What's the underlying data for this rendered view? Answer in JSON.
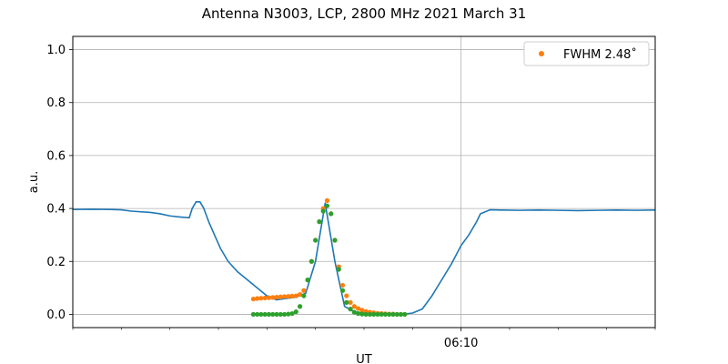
{
  "chart_data": {
    "type": "line",
    "title": "Antenna N3003, LCP, 2800 MHz 2021 March 31",
    "xlabel": "UT",
    "ylabel": "a.u.",
    "ylim": [
      -0.05,
      1.05
    ],
    "yticks": [
      0.0,
      0.2,
      0.4,
      0.6,
      0.8,
      1.0
    ],
    "ytick_labels": [
      "0.0",
      "0.2",
      "0.4",
      "0.6",
      "0.8",
      "1.0"
    ],
    "xlim_minutes": [
      0,
      30
    ],
    "x_unit": "minutes",
    "xticks_major": [
      {
        "x": 20,
        "label": "06:10"
      }
    ],
    "xticks_minor": [
      0,
      2.5,
      5,
      7.5,
      10,
      12.5,
      15,
      17.5,
      22.5,
      25,
      27.5,
      30
    ],
    "vline_x": 20,
    "grid": "horizontal at y ticks; vertical at 06:10",
    "legend": {
      "placement": "top-right",
      "label": "FWHM 2.48$^\\circ$",
      "label_display": "FWHM 2.48˚",
      "color": "#ff7f0e"
    },
    "series": [
      {
        "kind": "line",
        "color": "#1f77b4",
        "x": [
          0,
          1,
          2,
          2.5,
          3,
          4,
          4.5,
          5,
          5.5,
          5.8,
          6.0,
          6.15,
          6.35,
          6.55,
          6.75,
          7.0,
          7.3,
          7.6,
          8.0,
          8.5,
          9.0,
          9.5,
          10.0,
          10.5,
          11.0,
          11.5,
          12.0,
          12.5,
          13.0,
          13.5,
          14.0,
          14.5,
          15.0,
          15.5,
          16.0,
          16.5,
          17.0,
          17.5,
          18.0,
          18.5,
          19.0,
          19.5,
          20.0,
          20.4,
          20.8,
          21.0,
          21.5,
          22,
          23,
          24,
          25,
          26,
          27,
          28,
          29,
          30
        ],
        "y": [
          0.396,
          0.397,
          0.396,
          0.395,
          0.39,
          0.385,
          0.38,
          0.372,
          0.368,
          0.366,
          0.365,
          0.4,
          0.425,
          0.425,
          0.4,
          0.35,
          0.3,
          0.25,
          0.2,
          0.16,
          0.13,
          0.1,
          0.07,
          0.055,
          0.06,
          0.065,
          0.08,
          0.2,
          0.42,
          0.2,
          0.03,
          0.01,
          0.005,
          0.003,
          0.002,
          0.001,
          0.0,
          0.005,
          0.02,
          0.07,
          0.13,
          0.19,
          0.26,
          0.3,
          0.35,
          0.38,
          0.395,
          0.394,
          0.393,
          0.394,
          0.393,
          0.392,
          0.393,
          0.394,
          0.393,
          0.394
        ]
      },
      {
        "kind": "scatter",
        "color": "#ff7f0e",
        "x": [
          9.3,
          9.5,
          9.7,
          9.9,
          10.1,
          10.3,
          10.5,
          10.7,
          10.9,
          11.1,
          11.3,
          11.5,
          11.7,
          11.9,
          12.1,
          12.3,
          12.5,
          12.7,
          12.9,
          13.1,
          13.3,
          13.5,
          13.7,
          13.9,
          14.1,
          14.3,
          14.5,
          14.7,
          14.9,
          15.1,
          15.3,
          15.5,
          15.7,
          15.9,
          16.1,
          16.3,
          16.5,
          16.7,
          16.9,
          17.1
        ],
        "y": [
          0.058,
          0.06,
          0.061,
          0.062,
          0.063,
          0.064,
          0.065,
          0.066,
          0.067,
          0.068,
          0.069,
          0.07,
          0.075,
          0.09,
          0.13,
          0.2,
          0.28,
          0.35,
          0.4,
          0.43,
          0.38,
          0.28,
          0.18,
          0.11,
          0.07,
          0.045,
          0.03,
          0.022,
          0.016,
          0.011,
          0.008,
          0.006,
          0.004,
          0.003,
          0.002,
          0.001,
          0.001,
          0.0,
          0.0,
          0.0
        ]
      },
      {
        "kind": "scatter",
        "color": "#2ca02c",
        "x": [
          9.3,
          9.5,
          9.7,
          9.9,
          10.1,
          10.3,
          10.5,
          10.7,
          10.9,
          11.1,
          11.3,
          11.5,
          11.7,
          11.9,
          12.1,
          12.3,
          12.5,
          12.7,
          12.9,
          13.1,
          13.3,
          13.5,
          13.7,
          13.9,
          14.1,
          14.3,
          14.5,
          14.7,
          14.9,
          15.1,
          15.3,
          15.5,
          15.7,
          15.9,
          16.1,
          16.3,
          16.5,
          16.7,
          16.9,
          17.1
        ],
        "y": [
          0.0,
          0.0,
          0.0,
          0.0,
          0.0,
          0.0,
          0.0,
          0.0,
          0.0,
          0.001,
          0.003,
          0.01,
          0.03,
          0.07,
          0.13,
          0.2,
          0.28,
          0.35,
          0.39,
          0.41,
          0.38,
          0.28,
          0.17,
          0.09,
          0.045,
          0.02,
          0.008,
          0.003,
          0.001,
          0.0,
          0.0,
          0.0,
          0.0,
          0.0,
          0.0,
          0.0,
          0.0,
          0.0,
          0.0,
          0.0
        ]
      }
    ]
  }
}
